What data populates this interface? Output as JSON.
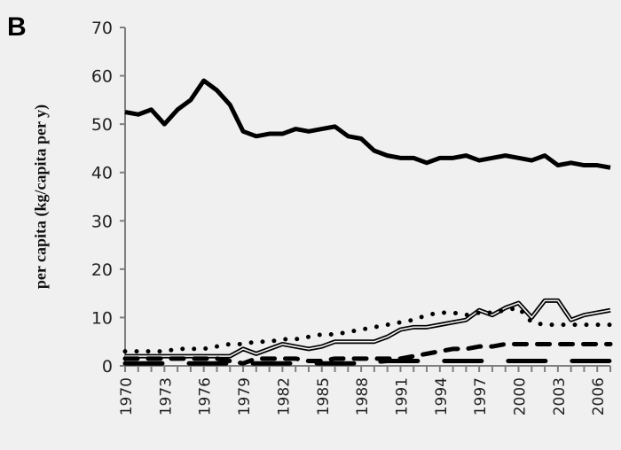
{
  "panel_label": "B",
  "chart_data": {
    "type": "line",
    "title": "",
    "xlabel": "",
    "ylabel": "per capita (kg/capita per y)",
    "xlim": [
      1970,
      2007
    ],
    "ylim": [
      0,
      70
    ],
    "yticks": [
      0,
      10,
      20,
      30,
      40,
      50,
      60,
      70
    ],
    "xtick_labels": [
      "1970",
      "1973",
      "1976",
      "1979",
      "1982",
      "1985",
      "1988",
      "1991",
      "1994",
      "1997",
      "2000",
      "2003",
      "2006"
    ],
    "grid": false,
    "legend": "none",
    "x": [
      1970,
      1971,
      1972,
      1973,
      1974,
      1975,
      1976,
      1977,
      1978,
      1979,
      1980,
      1981,
      1982,
      1983,
      1984,
      1985,
      1986,
      1987,
      1988,
      1989,
      1990,
      1991,
      1992,
      1993,
      1994,
      1995,
      1996,
      1997,
      1998,
      1999,
      2000,
      2001,
      2002,
      2003,
      2004,
      2005,
      2006,
      2007
    ],
    "series": [
      {
        "style": "thick-solid",
        "color": "#000000",
        "values": [
          52.5,
          52,
          53,
          50,
          53,
          55,
          59,
          57,
          54,
          48.5,
          47.5,
          48,
          48,
          49,
          48.5,
          49,
          49.5,
          47.5,
          47,
          44.5,
          43.5,
          43,
          43,
          42,
          43,
          43,
          43.5,
          42.5,
          43,
          43.5,
          43,
          42.5,
          43.5,
          41.5,
          42,
          41.5,
          41.5,
          41
        ]
      },
      {
        "style": "double-line",
        "color": "#000000",
        "values": [
          2,
          2,
          2,
          2,
          2,
          2,
          2,
          2,
          2,
          3.5,
          2.5,
          3.5,
          4.5,
          4,
          3.5,
          4,
          5,
          5,
          5,
          5,
          6,
          7.5,
          8,
          8,
          8.5,
          9,
          9.5,
          11.5,
          10.5,
          12,
          13,
          10,
          13.5,
          13.5,
          9.5,
          10.5,
          11,
          11.5
        ]
      },
      {
        "style": "dotted",
        "color": "#000000",
        "values": [
          3,
          3,
          3,
          3,
          3.5,
          3.5,
          3.5,
          4,
          4.5,
          4.5,
          5,
          5,
          5.5,
          5.5,
          6,
          6.5,
          6.5,
          7,
          7.5,
          8,
          8.5,
          9,
          9.5,
          10.5,
          11,
          11,
          10.5,
          11,
          11,
          11.5,
          12,
          9,
          8.5,
          8.5,
          8.5,
          8.5,
          8.5,
          8.5
        ]
      },
      {
        "style": "dashed",
        "color": "#000000",
        "values": [
          1.5,
          1.5,
          1.5,
          1.5,
          1.5,
          1.5,
          1.5,
          1.5,
          1,
          0.5,
          1.5,
          1.5,
          1.5,
          1.5,
          1,
          1,
          1.5,
          1.5,
          1.5,
          1.5,
          1.5,
          1.5,
          2,
          2.5,
          3,
          3.5,
          3.5,
          4,
          4,
          4.5,
          4.5,
          4.5,
          4.5,
          4.5,
          4.5,
          4.5,
          4.5,
          4.5
        ]
      },
      {
        "style": "long-dash",
        "color": "#000000",
        "values": [
          0.5,
          0.5,
          0.5,
          0.5,
          0.5,
          0.5,
          0.5,
          0.5,
          0.5,
          0.5,
          0.5,
          0.5,
          0.5,
          0.5,
          0.5,
          0.5,
          0.5,
          0.5,
          0.5,
          0.8,
          1,
          1,
          1,
          1,
          1,
          1,
          1,
          1,
          1,
          1,
          1,
          1,
          1,
          1,
          1,
          1,
          1,
          1
        ]
      }
    ]
  }
}
